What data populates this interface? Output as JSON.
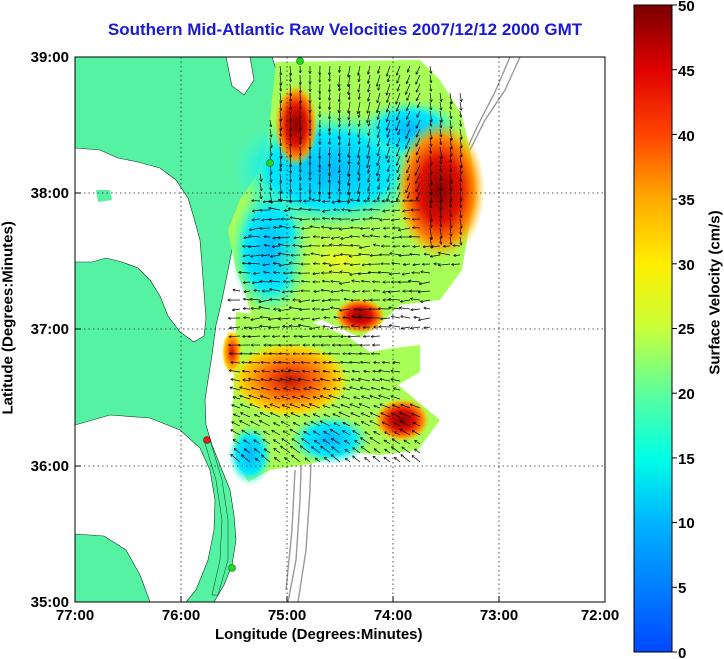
{
  "title": "Southern Mid-Atlantic Raw Velocities 2007/12/12 2000 GMT",
  "x_axis": {
    "label": "Longitude (Degrees:Minutes)",
    "ticks": [
      "77:00",
      "76:00",
      "75:00",
      "74:00",
      "73:00",
      "72:00"
    ]
  },
  "y_axis": {
    "label": "Latitude (Degrees:Minutes)",
    "ticks": [
      "39:00",
      "38:00",
      "37:00",
      "36:00",
      "35:00"
    ]
  },
  "colorbar": {
    "label": "Surface Velocity (cm/s)",
    "ticks": [
      "50",
      "45",
      "40",
      "35",
      "30",
      "25",
      "20",
      "15",
      "10",
      "5",
      "0"
    ],
    "min": 0,
    "max": 50
  },
  "colors": {
    "land": "#56f2a4",
    "water": "#ffffff",
    "title": "#1a1ad6",
    "vector": "#000000",
    "station_active": "#22d922",
    "station_inactive": "#e02020"
  },
  "stations": [
    {
      "status": "active"
    },
    {
      "status": "active"
    },
    {
      "status": "inactive"
    },
    {
      "status": "active"
    }
  ]
}
